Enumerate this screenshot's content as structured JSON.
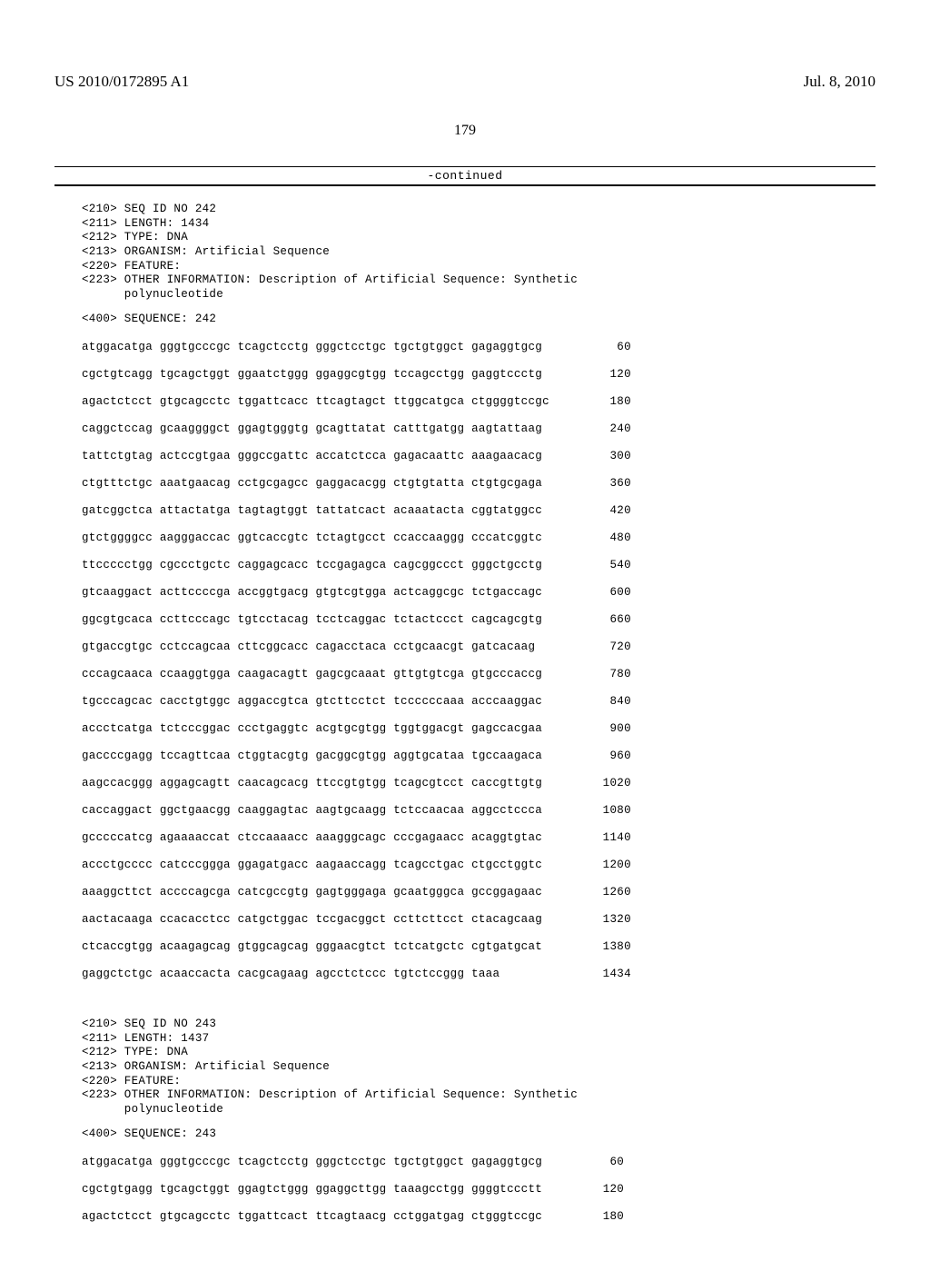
{
  "header": {
    "pub_number": "US 2010/0172895 A1",
    "pub_date": "Jul. 8, 2010"
  },
  "page_number": "179",
  "continued_label": "-continued",
  "seq242": {
    "header_lines": [
      "<210> SEQ ID NO 242",
      "<211> LENGTH: 1434",
      "<212> TYPE: DNA",
      "<213> ORGANISM: Artificial Sequence",
      "<220> FEATURE:",
      "<223> OTHER INFORMATION: Description of Artificial Sequence: Synthetic",
      "      polynucleotide"
    ],
    "sequence_label": "<400> SEQUENCE: 242",
    "rows": [
      {
        "s": "atggacatga gggtgcccgc tcagctcctg gggctcctgc tgctgtggct gagaggtgcg",
        "p": "60"
      },
      {
        "s": "cgctgtcagg tgcagctggt ggaatctggg ggaggcgtgg tccagcctgg gaggtccctg",
        "p": "120"
      },
      {
        "s": "agactctcct gtgcagcctc tggattcacc ttcagtagct ttggcatgca ctggggtccgc",
        "p": "180"
      },
      {
        "s": "caggctccag gcaaggggct ggagtgggtg gcagttatat catttgatgg aagtattaag",
        "p": "240"
      },
      {
        "s": "tattctgtag actccgtgaa gggccgattc accatctcca gagacaattc aaagaacacg",
        "p": "300"
      },
      {
        "s": "ctgtttctgc aaatgaacag cctgcgagcc gaggacacgg ctgtgtatta ctgtgcgaga",
        "p": "360"
      },
      {
        "s": "gatcggctca attactatga tagtagtggt tattatcact acaaatacta cggtatggcc",
        "p": "420"
      },
      {
        "s": "gtctggggcc aagggaccac ggtcaccgtc tctagtgcct ccaccaaggg cccatcggtc",
        "p": "480"
      },
      {
        "s": "ttccccctgg cgccctgctc caggagcacc tccgagagca cagcggccct gggctgcctg",
        "p": "540"
      },
      {
        "s": "gtcaaggact acttccccga accggtgacg gtgtcgtgga actcaggcgc tctgaccagc",
        "p": "600"
      },
      {
        "s": "ggcgtgcaca ccttcccagc tgtcctacag tcctcaggac tctactccct cagcagcgtg",
        "p": "660"
      },
      {
        "s": "gtgaccgtgc cctccagcaa cttcggcacc cagacctaca cctgcaacgt gatcacaag",
        "p": "720"
      },
      {
        "s": "cccagcaaca ccaaggtgga caagacagtt gagcgcaaat gttgtgtcga gtgcccaccg",
        "p": "780"
      },
      {
        "s": "tgcccagcac cacctgtggc aggaccgtca gtcttcctct tccccccaaa acccaaggac",
        "p": "840"
      },
      {
        "s": "accctcatga tctcccggac ccctgaggtc acgtgcgtgg tggtggacgt gagccacgaa",
        "p": "900"
      },
      {
        "s": "gaccccgagg tccagttcaa ctggtacgtg gacggcgtgg aggtgcataa tgccaagaca",
        "p": "960"
      },
      {
        "s": "aagccacggg aggagcagtt caacagcacg ttccgtgtgg tcagcgtcct caccgttgtg",
        "p": "1020"
      },
      {
        "s": "caccaggact ggctgaacgg caaggagtac aagtgcaagg tctccaacaa aggcctccca",
        "p": "1080"
      },
      {
        "s": "gcccccatcg agaaaaccat ctccaaaacc aaagggcagc cccgagaacc acaggtgtac",
        "p": "1140"
      },
      {
        "s": "accctgcccc catcccggga ggagatgacc aagaaccagg tcagcctgac ctgcctggtc",
        "p": "1200"
      },
      {
        "s": "aaaggcttct accccagcga catcgccgtg gagtgggaga gcaatgggca gccggagaac",
        "p": "1260"
      },
      {
        "s": "aactacaaga ccacacctcc catgctggac tccgacggct ccttcttcct ctacagcaag",
        "p": "1320"
      },
      {
        "s": "ctcaccgtgg acaagagcag gtggcagcag gggaacgtct tctcatgctc cgtgatgcat",
        "p": "1380"
      },
      {
        "s": "gaggctctgc acaaccacta cacgcagaag agcctctccc tgtctccggg taaa",
        "p": "1434"
      }
    ]
  },
  "seq243": {
    "header_lines": [
      "<210> SEQ ID NO 243",
      "<211> LENGTH: 1437",
      "<212> TYPE: DNA",
      "<213> ORGANISM: Artificial Sequence",
      "<220> FEATURE:",
      "<223> OTHER INFORMATION: Description of Artificial Sequence: Synthetic",
      "      polynucleotide"
    ],
    "sequence_label": "<400> SEQUENCE: 243",
    "rows": [
      {
        "s": "atggacatga gggtgcccgc tcagctcctg gggctcctgc tgctgtggct gagaggtgcg",
        "p": "60"
      },
      {
        "s": "cgctgtgagg tgcagctggt ggagtctggg ggaggcttgg taaagcctgg ggggtccctt",
        "p": "120"
      },
      {
        "s": "agactctcct gtgcagcctc tggattcact ttcagtaacg cctggatgag ctgggtccgc",
        "p": "180"
      }
    ]
  },
  "fonts": {
    "mono": "Courier New",
    "serif": "Times New Roman"
  },
  "colors": {
    "text": "#000000",
    "background": "#ffffff",
    "rule": "#000000"
  }
}
